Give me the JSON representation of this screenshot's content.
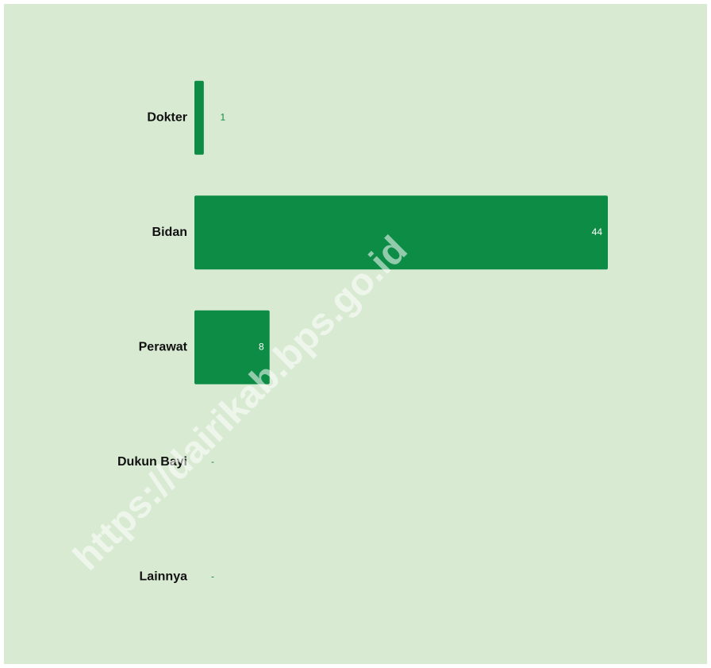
{
  "chart_data": {
    "type": "bar",
    "orientation": "horizontal",
    "categories": [
      "Dokter",
      "Bidan",
      "Perawat",
      "Dukun Bayi",
      "Lainnya"
    ],
    "values": [
      1,
      44,
      8,
      null,
      null
    ],
    "value_labels": [
      "1",
      "44",
      "8",
      "-",
      "-"
    ],
    "color": "#0c8c45",
    "watermark": "https://dairikab.bps.go.id"
  }
}
